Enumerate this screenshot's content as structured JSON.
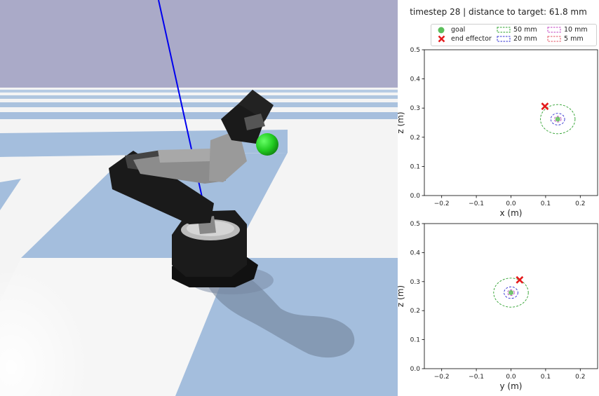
{
  "suptitle": "timestep 28 | distance to target: 61.8 mm",
  "legend": {
    "goal": "goal",
    "end_effector": "end effector",
    "r50": "50 mm",
    "r20": "20 mm",
    "r10": "10 mm",
    "r5": "5 mm"
  },
  "colors": {
    "goal": "#5cbf5c",
    "end_effector": "#e41a1c",
    "r50": "#2ca02c",
    "r20": "#3030d0",
    "r10": "#c040c0",
    "r5": "#e05060",
    "sky": "#aaaac8",
    "floor_light": "#f4f4f4",
    "floor_blue": "#a4bedd",
    "target_sphere": "#22cc22"
  },
  "chart_data": [
    {
      "type": "scatter",
      "xlabel": "x (m)",
      "ylabel": "z (m)",
      "xlim": [
        -0.25,
        0.25
      ],
      "ylim": [
        0.0,
        0.5
      ],
      "xticks": [
        "−0.2",
        "−0.1",
        "0.0",
        "0.1",
        "0.2"
      ],
      "yticks": [
        "0.0",
        "0.1",
        "0.2",
        "0.3",
        "0.4",
        "0.5"
      ],
      "goal": [
        0.135,
        0.262
      ],
      "end_effector": [
        0.098,
        0.306
      ],
      "radii_m": [
        0.05,
        0.02,
        0.01,
        0.005
      ]
    },
    {
      "type": "scatter",
      "xlabel": "y (m)",
      "ylabel": "z (m)",
      "xlim": [
        -0.25,
        0.25
      ],
      "ylim": [
        0.0,
        0.5
      ],
      "xticks": [
        "−0.2",
        "−0.1",
        "0.0",
        "0.1",
        "0.2"
      ],
      "yticks": [
        "0.0",
        "0.1",
        "0.2",
        "0.3",
        "0.4",
        "0.5"
      ],
      "goal": [
        0.0,
        0.262
      ],
      "end_effector": [
        0.025,
        0.306
      ],
      "radii_m": [
        0.05,
        0.02,
        0.01,
        0.005
      ]
    }
  ]
}
